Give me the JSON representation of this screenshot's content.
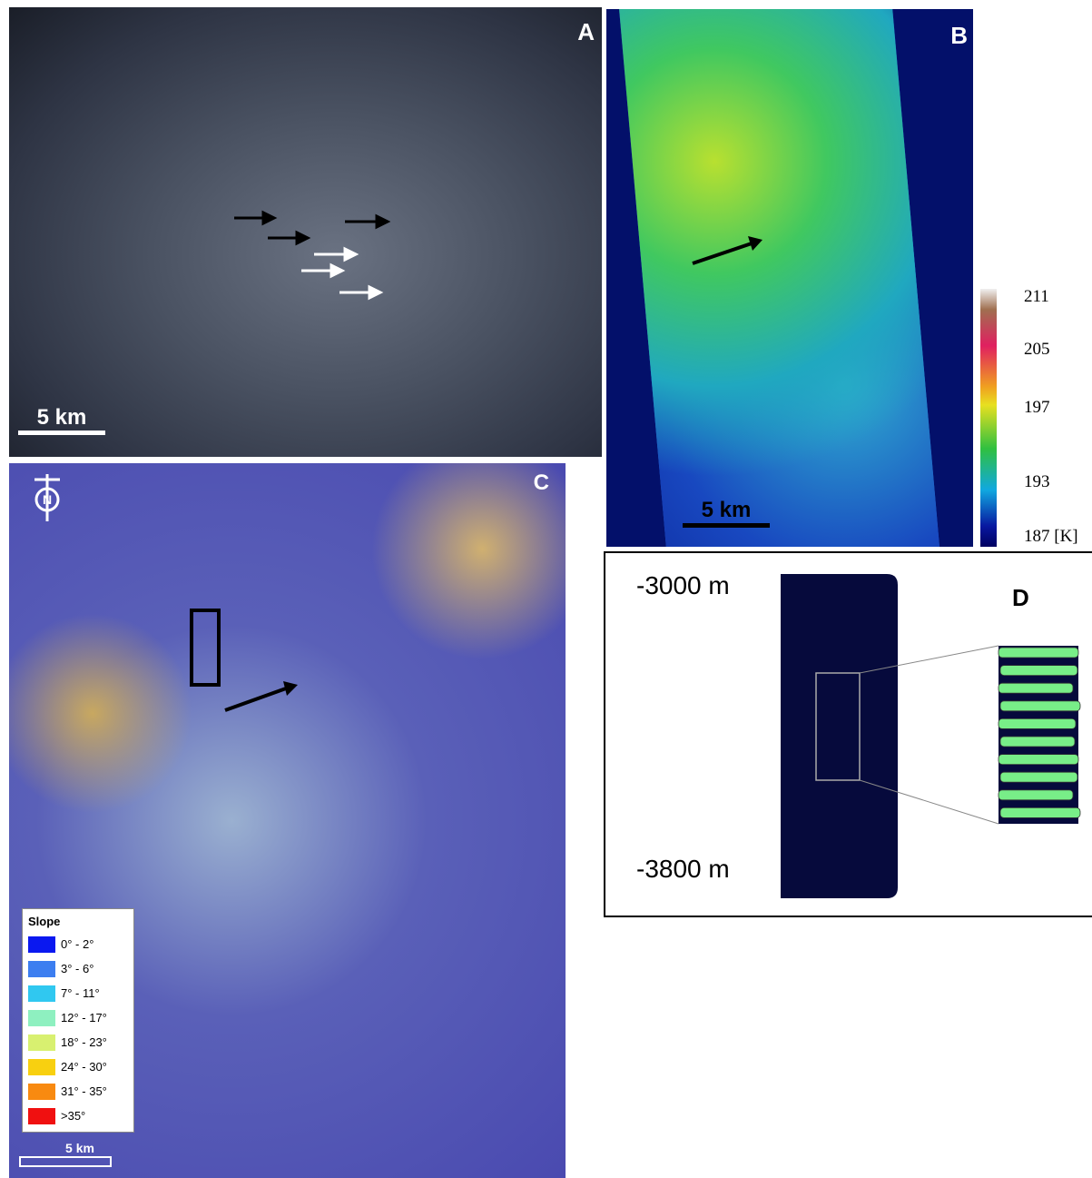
{
  "panels": [
    {
      "label": "A",
      "scale_bar": "5 km"
    },
    {
      "label": "B",
      "scale_bar": "5 km",
      "colorbar": {
        "labels": [
          "211",
          "205",
          "197",
          "193",
          "187 [K]"
        ]
      }
    },
    {
      "label": "C",
      "scale_bar": "5 km",
      "legend": {
        "title": "Slope",
        "items": [
          {
            "label": "0° - 2°",
            "color": "#0a18f0"
          },
          {
            "label": "3° - 6°",
            "color": "#3c7ef0"
          },
          {
            "label": "7° - 11°",
            "color": "#30c8f0"
          },
          {
            "label": "12° - 17°",
            "color": "#8ef0c0"
          },
          {
            "label": "18° - 23°",
            "color": "#d8f070"
          },
          {
            "label": "24° - 30°",
            "color": "#f8d010"
          },
          {
            "label": "31° - 35°",
            "color": "#f88a10"
          },
          {
            "label": ">35°",
            "color": "#f01010"
          }
        ]
      }
    },
    {
      "label": "D",
      "top_label": "-3000 m",
      "bottom_label": "-3800 m"
    }
  ]
}
